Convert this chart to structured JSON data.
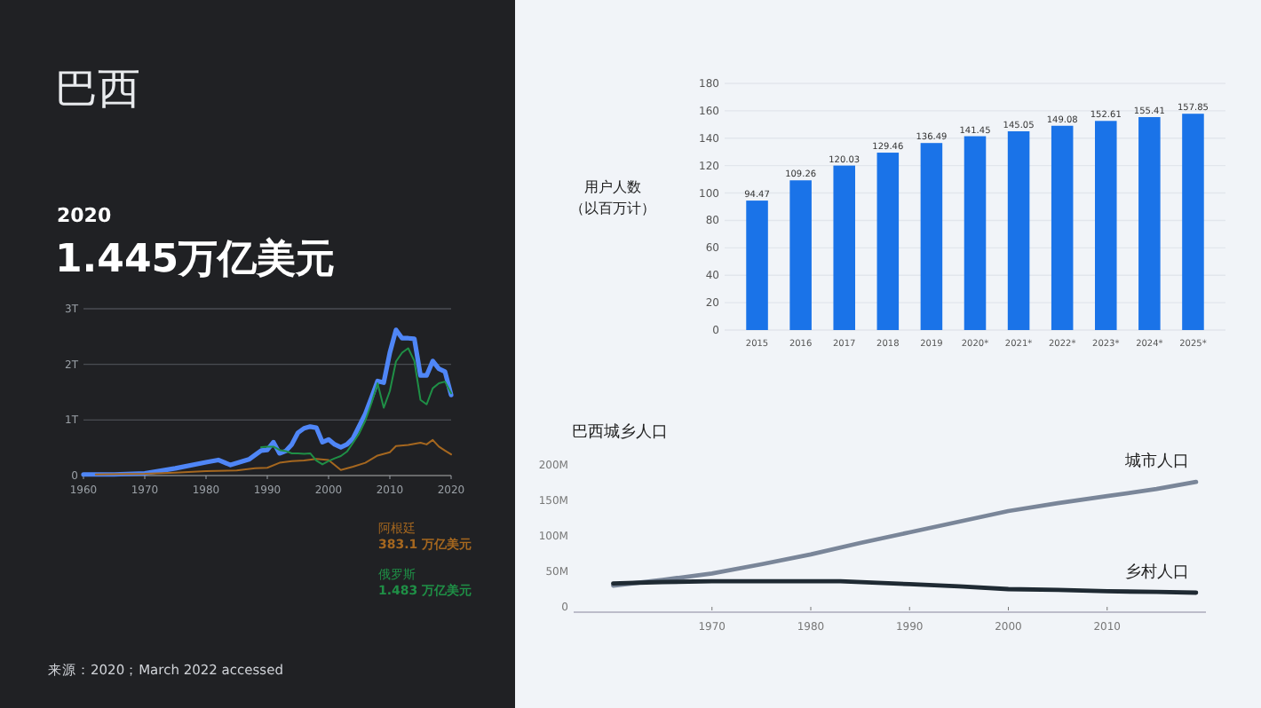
{
  "chart_data": [
    {
      "type": "line",
      "title": "巴西",
      "subtitle": "2020",
      "annotations": [
        "1.445万亿美元",
        "383.1 万亿美元",
        "1.483 万亿美元",
        "来源：2020；March 2022 accessed"
      ],
      "xlim": [
        1960,
        2020
      ],
      "xticks": [
        1960,
        1970,
        1980,
        1990,
        2000,
        2010,
        2020
      ],
      "ylim": [
        0,
        3
      ],
      "yticks": [
        0,
        {
          "value": 1,
          "label": "1T"
        },
        {
          "value": 2,
          "label": "2T"
        },
        {
          "value": 3,
          "label": "3T"
        }
      ],
      "grid": "y",
      "legend": "bottom right",
      "series": [
        {
          "color": "#4f86f7",
          "x": [
            1960,
            1965,
            1970,
            1975,
            1980,
            1982,
            1984,
            1987,
            1989,
            1990,
            1991,
            1992,
            1993,
            1994,
            1995,
            1996,
            1997,
            1998,
            1999,
            2000,
            2001,
            2002,
            2003,
            2004,
            2005,
            2006,
            2007,
            2008,
            2009,
            2010,
            2011,
            2012,
            2013,
            2014,
            2015,
            2016,
            2017,
            2018,
            2019,
            2020
          ],
          "values": [
            0.02,
            0.02,
            0.04,
            0.13,
            0.24,
            0.28,
            0.19,
            0.29,
            0.45,
            0.46,
            0.6,
            0.4,
            0.44,
            0.56,
            0.77,
            0.85,
            0.88,
            0.86,
            0.6,
            0.65,
            0.56,
            0.51,
            0.56,
            0.67,
            0.89,
            1.11,
            1.4,
            1.7,
            1.67,
            2.21,
            2.62,
            2.47,
            2.47,
            2.46,
            1.8,
            1.8,
            2.06,
            1.92,
            1.87,
            1.45
          ]
        },
        {
          "name": "阿根廷",
          "color": "#a5671f",
          "x": [
            1962,
            1970,
            1975,
            1980,
            1985,
            1988,
            1990,
            1992,
            1994,
            1996,
            1998,
            2000,
            2002,
            2004,
            2006,
            2008,
            2010,
            2011,
            2013,
            2015,
            2016,
            2017,
            2018,
            2019,
            2020
          ],
          "values": [
            0.02,
            0.03,
            0.05,
            0.08,
            0.09,
            0.13,
            0.14,
            0.23,
            0.26,
            0.27,
            0.3,
            0.28,
            0.1,
            0.16,
            0.23,
            0.36,
            0.42,
            0.53,
            0.55,
            0.59,
            0.56,
            0.64,
            0.52,
            0.45,
            0.38
          ]
        },
        {
          "name": "俄罗斯",
          "color": "#1f8f46",
          "x": [
            1989,
            1990,
            1991,
            1992,
            1993,
            1994,
            1995,
            1996,
            1997,
            1998,
            1999,
            2000,
            2001,
            2002,
            2003,
            2004,
            2005,
            2006,
            2007,
            2008,
            2009,
            2010,
            2011,
            2012,
            2013,
            2014,
            2015,
            2016,
            2017,
            2018,
            2019,
            2020
          ],
          "values": [
            0.51,
            0.52,
            0.52,
            0.46,
            0.44,
            0.4,
            0.4,
            0.39,
            0.4,
            0.27,
            0.2,
            0.26,
            0.31,
            0.35,
            0.43,
            0.59,
            0.76,
            0.99,
            1.3,
            1.66,
            1.22,
            1.52,
            2.05,
            2.21,
            2.29,
            2.06,
            1.36,
            1.28,
            1.57,
            1.66,
            1.69,
            1.48
          ]
        }
      ]
    },
    {
      "type": "bar",
      "ylabel": "用户人数（以百万计）",
      "categories": [
        "2015",
        "2016",
        "2017",
        "2018",
        "2019",
        "2020*",
        "2021*",
        "2022*",
        "2023*",
        "2024*",
        "2025*"
      ],
      "values": [
        94.47,
        109.26,
        120.03,
        129.46,
        136.49,
        141.45,
        145.05,
        149.08,
        152.61,
        155.41,
        157.85
      ],
      "color": "#1a73e8",
      "ylim": [
        0,
        180
      ],
      "yticks": [
        0,
        20,
        40,
        60,
        80,
        100,
        120,
        140,
        160,
        180
      ],
      "grid": "y",
      "data_labels": true
    },
    {
      "type": "line",
      "title": "巴西城乡人口",
      "xlim": [
        1956,
        2020
      ],
      "xticks": [
        1970,
        1980,
        1990,
        2000,
        2010
      ],
      "ylim": [
        0,
        200
      ],
      "yticks": [
        0,
        {
          "value": 50,
          "label": "50M"
        },
        {
          "value": 100,
          "label": "100M"
        },
        {
          "value": 150,
          "label": "150M"
        },
        {
          "value": 200,
          "label": "200M"
        }
      ],
      "series": [
        {
          "name": "城市人口",
          "color": "#7a8699",
          "x": [
            1960,
            1965,
            1970,
            1975,
            1980,
            1985,
            1990,
            1995,
            2000,
            2005,
            2010,
            2015,
            2019
          ],
          "values": [
            30,
            38,
            47,
            60,
            74,
            90,
            105,
            120,
            135,
            146,
            156,
            166,
            176
          ]
        },
        {
          "name": "乡村人口",
          "color": "#1f2a33",
          "x": [
            1960,
            1965,
            1970,
            1975,
            1980,
            1983,
            1990,
            1995,
            2000,
            2005,
            2010,
            2015,
            2019
          ],
          "values": [
            33,
            35,
            36,
            36,
            36,
            36,
            32,
            29,
            25,
            24,
            22,
            21,
            20
          ]
        }
      ]
    }
  ]
}
